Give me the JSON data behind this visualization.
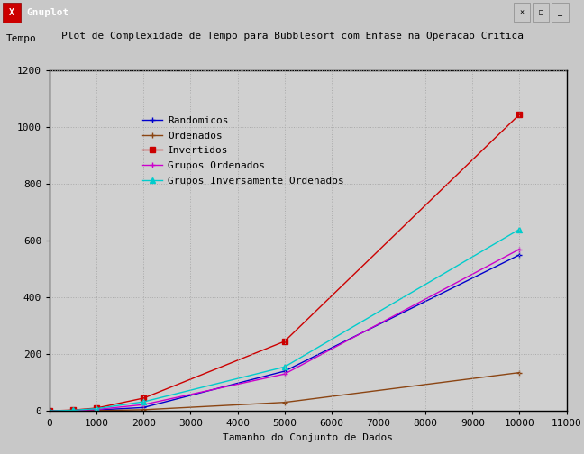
{
  "title": "Plot de Complexidade de Tempo para Bubblesort com Enfase na Operacao Critica",
  "xlabel": "Tamanho do Conjunto de Dados",
  "ylabel": "Tempo",
  "xlim": [
    0,
    11000
  ],
  "ylim": [
    0,
    1200
  ],
  "xticks": [
    0,
    1000,
    2000,
    3000,
    4000,
    5000,
    6000,
    7000,
    8000,
    9000,
    10000,
    11000
  ],
  "yticks": [
    0,
    200,
    400,
    600,
    800,
    1000,
    1200
  ],
  "background_color": "#c8c8c8",
  "plot_bg_color": "#d0d0d0",
  "series": [
    {
      "label": "Randomicos",
      "color": "#0000cc",
      "marker": "+",
      "marker_size": 5,
      "linestyle": "-",
      "linewidth": 1.0,
      "x": [
        0,
        500,
        1000,
        2000,
        5000,
        10000
      ],
      "y": [
        0,
        0,
        3,
        12,
        140,
        550
      ]
    },
    {
      "label": "Ordenados",
      "color": "#8b4513",
      "marker": "+",
      "marker_size": 5,
      "linestyle": "-",
      "linewidth": 1.0,
      "x": [
        0,
        500,
        1000,
        2000,
        5000,
        10000
      ],
      "y": [
        0,
        0,
        1,
        4,
        30,
        135
      ]
    },
    {
      "label": "Invertidos",
      "color": "#cc0000",
      "marker": "s",
      "marker_size": 4,
      "linestyle": "-",
      "linewidth": 1.0,
      "x": [
        0,
        500,
        1000,
        2000,
        5000,
        10000
      ],
      "y": [
        0,
        3,
        10,
        45,
        245,
        1045
      ]
    },
    {
      "label": "Grupos Ordenados",
      "color": "#cc00cc",
      "marker": "+",
      "marker_size": 5,
      "linestyle": "-",
      "linewidth": 1.0,
      "x": [
        0,
        500,
        1000,
        2000,
        5000,
        10000
      ],
      "y": [
        0,
        1,
        5,
        22,
        130,
        570
      ]
    },
    {
      "label": "Grupos Inversamente Ordenados",
      "color": "#00cccc",
      "marker": "^",
      "marker_size": 4,
      "linestyle": "-",
      "linewidth": 1.0,
      "x": [
        0,
        500,
        1000,
        2000,
        5000,
        10000
      ],
      "y": [
        0,
        2,
        8,
        32,
        155,
        640
      ]
    }
  ],
  "grid_color": "#aaaaaa",
  "grid_linestyle": ":",
  "legend_fontsize": 8,
  "title_fontsize": 8,
  "axis_label_fontsize": 8,
  "tick_fontsize": 8,
  "window_title": "Gnuplot",
  "titlebar_color": "#000080",
  "titlebar_text_color": "#ffffff",
  "window_btn_color": "#c8c8c8"
}
